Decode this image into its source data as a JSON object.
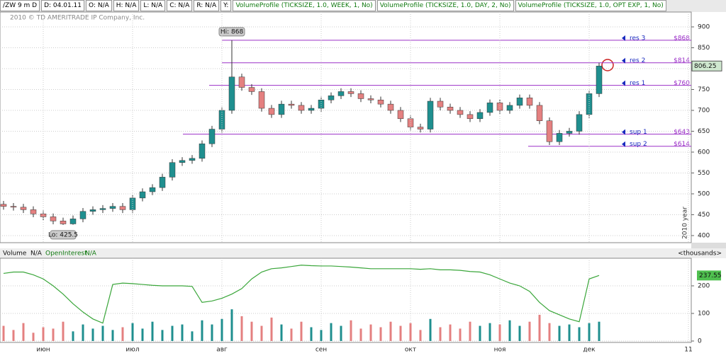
{
  "header": {
    "symbol": "/ZW 9 m D",
    "items": [
      "D: 04.01.11",
      "O: N/A",
      "H: N/A",
      "L: N/A",
      "C: N/A",
      "R: N/A",
      "Y:"
    ],
    "studies": [
      "VolumeProfile (TICKSIZE, 1.0, WEEK, 1, No)",
      "VolumeProfile (TICKSIZE, 1.0, DAY, 2, No)",
      "VolumeProfile (TICKSIZE, 1.0, OPT EXP, 1, No)"
    ]
  },
  "chart_data": [
    {
      "type": "candlestick",
      "watermark": "2010 © TD AMERITRADE IP Company, Inc.",
      "year_label": "2010 year",
      "color_up": "#1f8f8f",
      "color_down": "#e48080",
      "level_color": "#9b30c8",
      "ylim": [
        383,
        935.6
      ],
      "yticks": [
        400,
        450,
        500,
        550,
        600,
        650,
        700,
        750,
        800,
        850,
        900
      ],
      "grid": true,
      "open": [
        475,
        470,
        468,
        462,
        452,
        445,
        435,
        428,
        440,
        458,
        462,
        465,
        470,
        462,
        490,
        505,
        515,
        540,
        575,
        580,
        585,
        620,
        655,
        700,
        780,
        755,
        745,
        705,
        690,
        715,
        712,
        700,
        705,
        725,
        735,
        745,
        740,
        728,
        725,
        715,
        700,
        680,
        660,
        655,
        722,
        708,
        700,
        690,
        680,
        695,
        718,
        700,
        712,
        730,
        712,
        675,
        625,
        645,
        650,
        690,
        740,
        null,
        null,
        null,
        null,
        null,
        null,
        null,
        null,
        null
      ],
      "high": [
        483,
        478,
        476,
        470,
        460,
        453,
        443,
        448,
        466,
        470,
        473,
        478,
        478,
        498,
        513,
        523,
        548,
        583,
        588,
        593,
        628,
        663,
        708,
        868,
        788,
        763,
        753,
        713,
        723,
        723,
        720,
        713,
        733,
        743,
        753,
        753,
        748,
        736,
        733,
        723,
        708,
        688,
        668,
        730,
        730,
        716,
        708,
        698,
        703,
        726,
        726,
        720,
        738,
        738,
        720,
        683,
        653,
        658,
        698,
        748,
        814,
        null,
        null,
        null,
        null,
        null,
        null,
        null,
        null,
        null
      ],
      "low": [
        462,
        460,
        454,
        444,
        437,
        427,
        425.5,
        426,
        432,
        450,
        454,
        457,
        454,
        454,
        482,
        497,
        507,
        532,
        567,
        572,
        577,
        612,
        647,
        692,
        747,
        737,
        697,
        682,
        682,
        704,
        692,
        692,
        697,
        717,
        727,
        732,
        720,
        717,
        707,
        692,
        672,
        652,
        647,
        647,
        700,
        692,
        682,
        672,
        672,
        687,
        692,
        692,
        704,
        704,
        667,
        617,
        617,
        637,
        642,
        682,
        732,
        null,
        null,
        null,
        null,
        null,
        null,
        null,
        null,
        null
      ],
      "close": [
        470,
        468,
        462,
        452,
        445,
        435,
        428,
        440,
        458,
        462,
        465,
        470,
        462,
        490,
        505,
        515,
        540,
        575,
        580,
        585,
        620,
        655,
        700,
        780,
        755,
        745,
        705,
        690,
        715,
        712,
        700,
        705,
        725,
        735,
        745,
        740,
        728,
        725,
        715,
        700,
        680,
        660,
        655,
        722,
        708,
        700,
        690,
        680,
        695,
        718,
        700,
        712,
        730,
        712,
        675,
        625,
        645,
        650,
        690,
        740,
        806.25,
        null,
        null,
        null,
        null,
        null,
        null,
        null,
        null,
        null
      ],
      "last_price": 806.25,
      "high_label": {
        "value": 868,
        "label": "Hi: 868"
      },
      "low_label": {
        "value": 425.5,
        "label": "Lo: 425.5"
      },
      "levels": [
        {
          "name": "res 3",
          "value": 868,
          "label": "$868"
        },
        {
          "name": "res 2",
          "value": 814,
          "label": "$814"
        },
        {
          "name": "res 1",
          "value": 760,
          "label": "$760"
        },
        {
          "name": "sup 1",
          "value": 643,
          "label": "$643"
        },
        {
          "name": "sup 2",
          "value": 614,
          "label": "$614"
        }
      ]
    },
    {
      "type": "volume",
      "unit": "<thousands>",
      "ylim": [
        0,
        300
      ],
      "yticks": [
        0,
        100,
        200
      ],
      "categories": [
        null,
        null,
        null,
        null,
        "июн",
        null,
        null,
        null,
        null,
        null,
        null,
        null,
        null,
        "июл",
        null,
        null,
        null,
        null,
        null,
        null,
        null,
        null,
        "авг",
        null,
        null,
        null,
        null,
        null,
        null,
        null,
        null,
        null,
        "сен",
        null,
        null,
        null,
        null,
        null,
        null,
        null,
        null,
        "окт",
        null,
        null,
        null,
        null,
        null,
        null,
        null,
        null,
        "ноя",
        null,
        null,
        null,
        null,
        null,
        null,
        null,
        null,
        "дек",
        null,
        null,
        null,
        null,
        null,
        null,
        null,
        null,
        null,
        "11"
      ],
      "series": [
        {
          "name": "Volume",
          "status": "N/A",
          "values": [
            55,
            40,
            65,
            30,
            50,
            45,
            70,
            35,
            60,
            45,
            55,
            40,
            50,
            65,
            45,
            70,
            40,
            55,
            60,
            35,
            75,
            60,
            80,
            115,
            90,
            70,
            55,
            85,
            60,
            45,
            70,
            50,
            40,
            65,
            55,
            75,
            45,
            60,
            50,
            70,
            55,
            65,
            40,
            80,
            50,
            60,
            45,
            70,
            55,
            65,
            60,
            75,
            55,
            70,
            95,
            65,
            55,
            60,
            50,
            65,
            70,
            null,
            null,
            null,
            null,
            null,
            null,
            null,
            null,
            null
          ]
        },
        {
          "name": "OpenInterest",
          "status": "N/A",
          "color": "#3aa63a",
          "values": [
            245,
            250,
            250,
            240,
            225,
            200,
            170,
            135,
            105,
            80,
            65,
            205,
            210,
            208,
            205,
            202,
            200,
            200,
            200,
            198,
            140,
            145,
            155,
            170,
            190,
            225,
            250,
            262,
            265,
            270,
            275,
            273,
            272,
            272,
            270,
            268,
            265,
            262,
            262,
            262,
            262,
            262,
            260,
            262,
            258,
            258,
            256,
            252,
            250,
            240,
            225,
            210,
            200,
            180,
            140,
            110,
            95,
            80,
            70,
            225,
            237.55,
            null,
            null,
            null,
            null,
            null,
            null,
            null,
            null,
            null
          ]
        }
      ]
    }
  ]
}
